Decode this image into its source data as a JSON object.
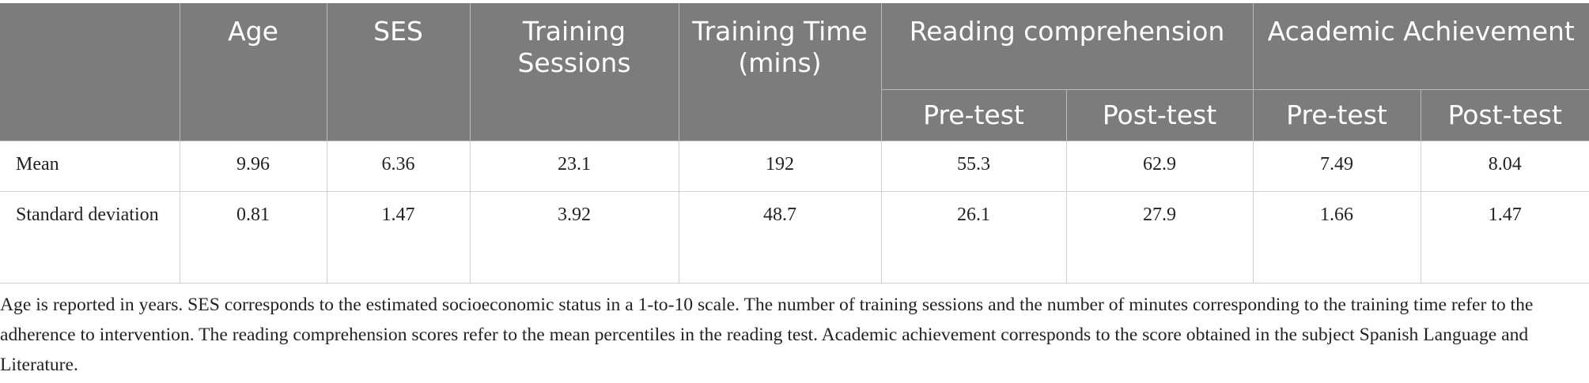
{
  "table": {
    "headers": {
      "blank": "",
      "age": "Age",
      "ses": "SES",
      "training_sessions": "Training Sessions",
      "training_time": "Training Time (mins)",
      "reading_comprehension": "Reading comprehension",
      "academic_achievement": "Academic Achievement",
      "reading_pre": "Pre-test",
      "reading_post": "Post-test",
      "academic_pre": "Pre-test",
      "academic_post": "Post-test"
    },
    "rows": [
      {
        "label": "Mean",
        "cells": [
          "9.96",
          "6.36",
          "23.1",
          "192",
          "55.3",
          "62.9",
          "7.49",
          "8.04"
        ]
      },
      {
        "label": "Standard deviation",
        "cells": [
          "0.81",
          "1.47",
          "3.92",
          "48.7",
          "26.1",
          "27.9",
          "1.66",
          "1.47"
        ]
      }
    ]
  },
  "footnote": "Age is reported in years. SES corresponds to the estimated socioeconomic status in a 1-to-10 scale. The number of training sessions and the number of minutes corresponding to the training time refer to the adherence to intervention. The reading comprehension scores refer to the mean percentiles in the reading test. Academic achievement corresponds to the score obtained in the subject Spanish Language and Literature.",
  "colors": {
    "header_background": "#7b7c7b",
    "header_text": "#ffffff",
    "body_text": "#222222",
    "grid_lines": "#cfcfcf"
  }
}
